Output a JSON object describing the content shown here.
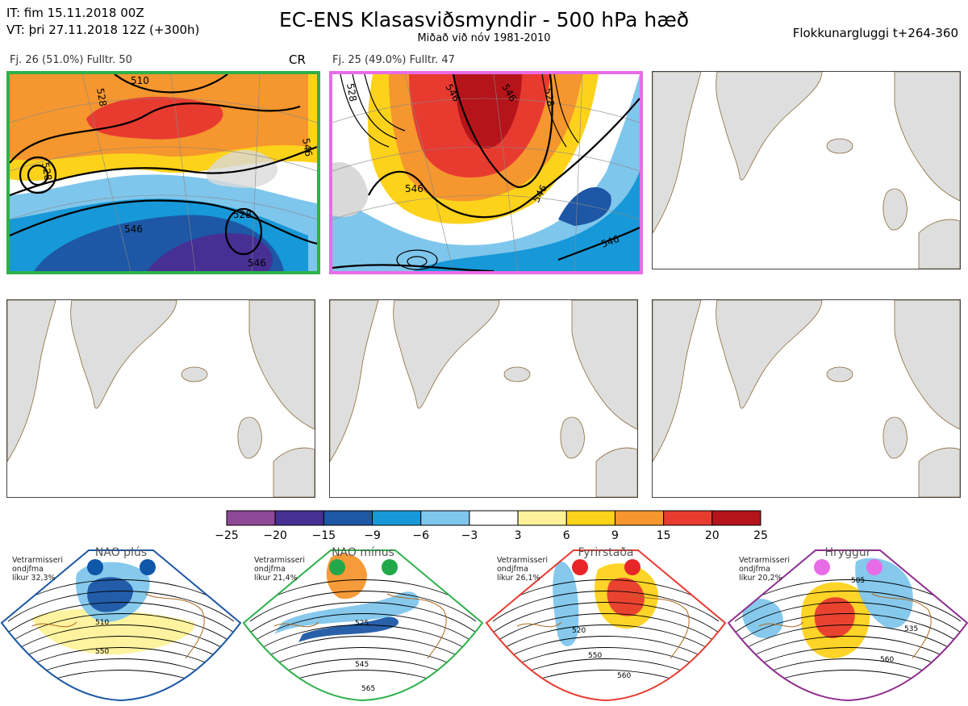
{
  "header": {
    "it_line": "IT: fim 15.11.2018 00Z",
    "vt_line": "VT: þri 27.11.2018 12Z  (+300h)",
    "title": "EC-ENS Klasasviðsmyndir - 500 hPa hæð",
    "subtitle": "Miðað við nóv 1981-2010",
    "window": "Flokkunargluggi t+264-360"
  },
  "clusters": [
    {
      "label": "Fj. 26 (51.0%)   Fulltr. 50",
      "regime_code": "CR",
      "frame_color": "#2db14a",
      "contours": [
        "528",
        "510",
        "528",
        "546",
        "546",
        "528",
        "546"
      ]
    },
    {
      "label": "Fj. 25 (49.0%)   Fulltr. 47",
      "regime_code": "",
      "frame_color": "#e86ce6",
      "contours": [
        "528",
        "546",
        "546",
        "546",
        "546",
        "546",
        "528"
      ]
    }
  ],
  "colorbar": {
    "colors": [
      "#8e4898",
      "#472f93",
      "#1d57a5",
      "#1798d8",
      "#7fc6ec",
      "#ffffff",
      "#fff29a",
      "#fdd21b",
      "#f5962e",
      "#e83b30",
      "#b5141a"
    ],
    "ticks": [
      "−25",
      "−20",
      "−15",
      "−9",
      "−6",
      "−3",
      "3",
      "6",
      "9",
      "15",
      "20",
      "25"
    ]
  },
  "regimes": [
    {
      "name": "NAO plús",
      "note": [
        "Vetrarmisseri",
        "ondjfma",
        "líkur 32,3%"
      ],
      "border": "#1d57a5",
      "dot": "#0f57a8",
      "contours": [
        "510",
        "550"
      ]
    },
    {
      "name": "NAO mínus",
      "note": [
        "Vetrarmisseri",
        "ondjfma",
        "líkur 21,4%"
      ],
      "border": "#2db14a",
      "dot": "#22a84a",
      "contours": [
        "525",
        "545",
        "565"
      ]
    },
    {
      "name": "Fyrirstaða",
      "note": [
        "Vetrarmisseri",
        "ondjfma",
        "líkur 26,1%"
      ],
      "border": "#e83b30",
      "dot": "#e8262a",
      "contours": [
        "520",
        "550",
        "560"
      ]
    },
    {
      "name": "Hryggur",
      "note": [
        "Vetrarmisseri",
        "ondjfma",
        "líkur 20,2%"
      ],
      "border": "#8e2e8e",
      "dot": "#e86ce6",
      "contours": [
        "505",
        "535",
        "560"
      ]
    }
  ]
}
